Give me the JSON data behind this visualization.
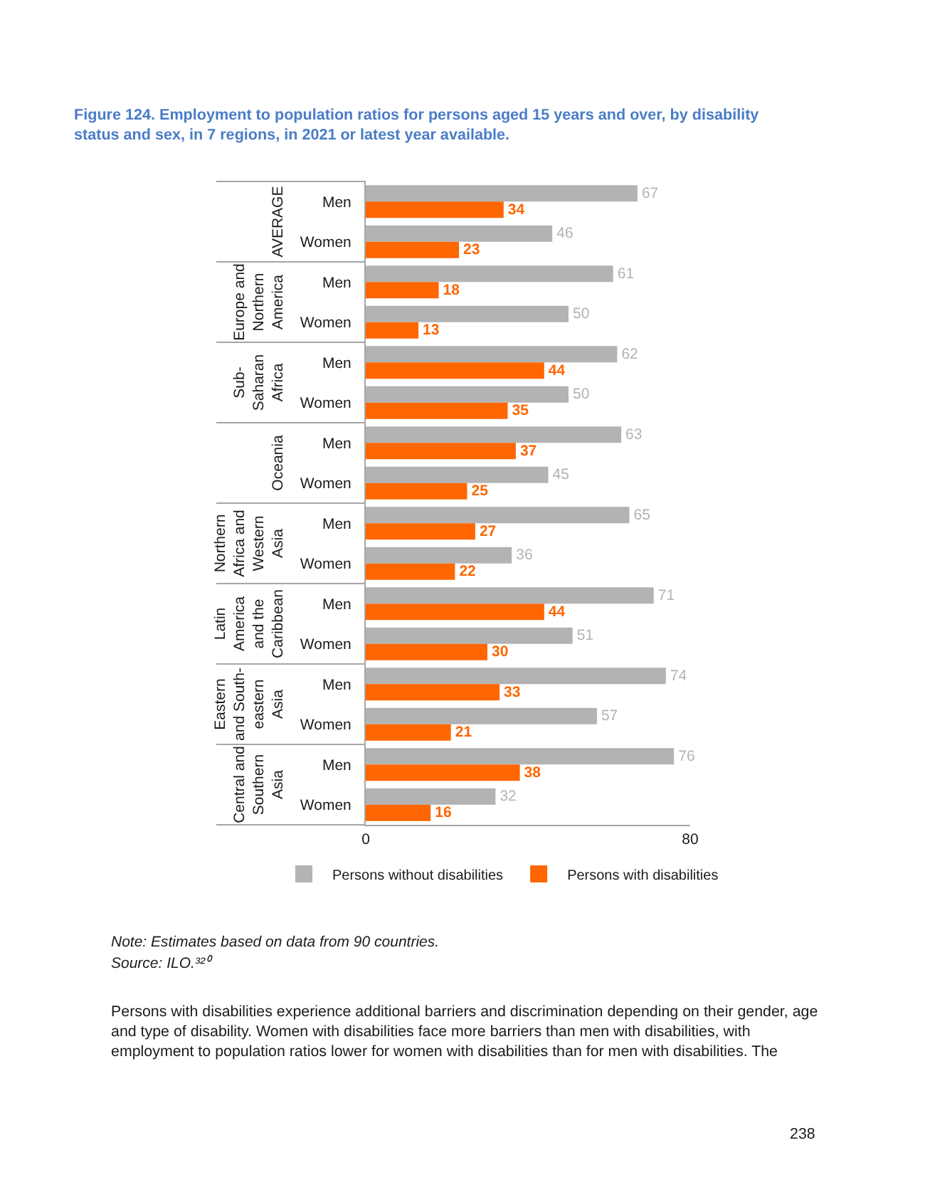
{
  "chart_data": [
    {
      "type": "bar",
      "orientation": "horizontal",
      "title": "Figure 124. Employment to population ratios for persons aged 15 years and over, by disability\nstatus and sex, in 7 regions, in 2021 or latest year available.",
      "ylabel": "AVERAGE",
      "categories": [
        "Men",
        "Women"
      ],
      "series": [
        {
          "color": "#b3b3b3",
          "values": [
            67,
            46
          ]
        },
        {
          "color": "#ff6600",
          "values": [
            34,
            23
          ]
        }
      ],
      "xlim": [
        0,
        80
      ],
      "data_labels": true,
      "tick_labels": "y"
    },
    {
      "type": "bar",
      "orientation": "horizontal",
      "ylabel": "Europe and\nNorthern\nAmerica",
      "categories": [
        "Men",
        "Women"
      ],
      "series": [
        {
          "color": "#b3b3b3",
          "values": [
            61,
            50
          ]
        },
        {
          "color": "#ff6600",
          "values": [
            18,
            13
          ]
        }
      ],
      "xlim": [
        0,
        80
      ],
      "data_labels": true,
      "tick_labels": "y"
    },
    {
      "type": "bar",
      "orientation": "horizontal",
      "ylabel": "Sub-\nSaharan\nAfrica",
      "categories": [
        "Men",
        "Women"
      ],
      "series": [
        {
          "color": "#b3b3b3",
          "values": [
            62,
            50
          ]
        },
        {
          "color": "#ff6600",
          "values": [
            44,
            35
          ]
        }
      ],
      "xlim": [
        0,
        80
      ],
      "data_labels": true,
      "tick_labels": "y"
    },
    {
      "type": "bar",
      "orientation": "horizontal",
      "ylabel": "Oceania",
      "categories": [
        "Men",
        "Women"
      ],
      "series": [
        {
          "color": "#b3b3b3",
          "values": [
            63,
            45
          ]
        },
        {
          "color": "#ff6600",
          "values": [
            37,
            25
          ]
        }
      ],
      "xlim": [
        0,
        80
      ],
      "data_labels": true,
      "tick_labels": "y"
    },
    {
      "type": "bar",
      "orientation": "horizontal",
      "ylabel": "Northern\nAfrica and\nWestern\nAsia",
      "categories": [
        "Men",
        "Women"
      ],
      "series": [
        {
          "color": "#b3b3b3",
          "values": [
            65,
            36
          ]
        },
        {
          "color": "#ff6600",
          "values": [
            27,
            22
          ]
        }
      ],
      "xlim": [
        0,
        80
      ],
      "data_labels": true,
      "tick_labels": "y"
    },
    {
      "type": "bar",
      "orientation": "horizontal",
      "ylabel": "Latin\nAmerica\nand the\nCaribbean",
      "categories": [
        "Men",
        "Women"
      ],
      "series": [
        {
          "color": "#b3b3b3",
          "values": [
            71,
            51
          ]
        },
        {
          "color": "#ff6600",
          "values": [
            44,
            30
          ]
        }
      ],
      "xlim": [
        0,
        80
      ],
      "data_labels": true,
      "tick_labels": "y"
    },
    {
      "type": "bar",
      "orientation": "horizontal",
      "ylabel": "Eastern\nand South-\neastern\nAsia",
      "categories": [
        "Men",
        "Women"
      ],
      "series": [
        {
          "color": "#b3b3b3",
          "values": [
            74,
            57
          ]
        },
        {
          "color": "#ff6600",
          "values": [
            33,
            21
          ]
        }
      ],
      "xlim": [
        0,
        80
      ],
      "data_labels": true,
      "tick_labels": "y"
    },
    {
      "type": "bar",
      "orientation": "horizontal",
      "ylabel": "Central and\nSouthern\nAsia",
      "categories": [
        "Men",
        "Women"
      ],
      "series": [
        {
          "name": "Persons without disabilities",
          "color": "#b3b3b3",
          "values": [
            76,
            32
          ]
        },
        {
          "name": "Persons with disabilities",
          "color": "#ff6600",
          "values": [
            38,
            16
          ]
        }
      ],
      "xlim": [
        0,
        80
      ],
      "xticks": [
        0,
        80
      ],
      "data_labels": true,
      "legend": "bottom",
      "annotations": [
        "Note: Estimates based on data from 90 countries.",
        "Source: ILO.³²⁰",
        "Persons with disabilities experience additional barriers and discrimination depending on their gender, age\nand type of disability. Women with disabilities face more barriers than men with disabilities, with\nemployment to population ratios lower for women with disabilities than for men with disabilities. The",
        "238"
      ]
    }
  ]
}
